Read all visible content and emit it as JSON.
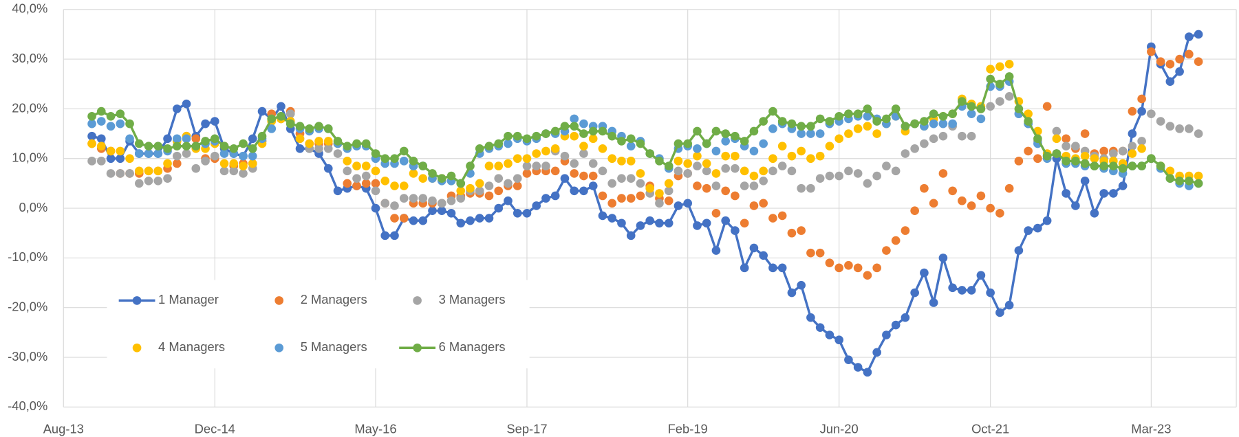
{
  "chart_data": {
    "type": "line",
    "x": [
      "2013-11",
      "2013-12",
      "2014-01",
      "2014-02",
      "2014-03",
      "2014-04",
      "2014-05",
      "2014-06",
      "2014-07",
      "2014-08",
      "2014-09",
      "2014-10",
      "2014-11",
      "2014-12",
      "2015-01",
      "2015-02",
      "2015-03",
      "2015-04",
      "2015-05",
      "2015-06",
      "2015-07",
      "2015-08",
      "2015-09",
      "2015-10",
      "2015-11",
      "2015-12",
      "2016-01",
      "2016-02",
      "2016-03",
      "2016-04",
      "2016-05",
      "2016-06",
      "2016-07",
      "2016-08",
      "2016-09",
      "2016-10",
      "2016-11",
      "2016-12",
      "2017-01",
      "2017-02",
      "2017-03",
      "2017-04",
      "2017-05",
      "2017-06",
      "2017-07",
      "2017-08",
      "2017-09",
      "2017-10",
      "2017-11",
      "2017-12",
      "2018-01",
      "2018-02",
      "2018-03",
      "2018-04",
      "2018-05",
      "2018-06",
      "2018-07",
      "2018-08",
      "2018-09",
      "2018-10",
      "2018-11",
      "2018-12",
      "2019-01",
      "2019-02",
      "2019-03",
      "2019-04",
      "2019-05",
      "2019-06",
      "2019-07",
      "2019-08",
      "2019-09",
      "2019-10",
      "2019-11",
      "2019-12",
      "2020-01",
      "2020-02",
      "2020-03",
      "2020-04",
      "2020-05",
      "2020-06",
      "2020-07",
      "2020-08",
      "2020-09",
      "2020-10",
      "2020-11",
      "2020-12",
      "2021-01",
      "2021-02",
      "2021-03",
      "2021-04",
      "2021-05",
      "2021-06",
      "2021-07",
      "2021-08",
      "2021-09",
      "2021-10",
      "2021-11",
      "2021-12",
      "2022-01",
      "2022-02",
      "2022-03",
      "2022-04",
      "2022-05",
      "2022-06",
      "2022-07",
      "2022-08",
      "2022-09",
      "2022-10",
      "2022-11",
      "2022-12",
      "2023-01",
      "2023-02",
      "2023-03",
      "2023-04",
      "2023-05",
      "2023-06",
      "2023-07",
      "2023-08"
    ],
    "xlim": [
      "2013-08",
      "2023-12"
    ],
    "xticks": [
      {
        "value": "2013-08",
        "label": "Aug-13"
      },
      {
        "value": "2014-12",
        "label": "Dec-14"
      },
      {
        "value": "2016-05",
        "label": "May-16"
      },
      {
        "value": "2017-09",
        "label": "Sep-17"
      },
      {
        "value": "2019-02",
        "label": "Feb-19"
      },
      {
        "value": "2020-06",
        "label": "Jun-20"
      },
      {
        "value": "2021-10",
        "label": "Oct-21"
      },
      {
        "value": "2023-03",
        "label": "Mar-23"
      }
    ],
    "ylim": [
      -40,
      40
    ],
    "yticks": [
      {
        "value": -40,
        "label": "-40,0%"
      },
      {
        "value": -30,
        "label": "-30,0%"
      },
      {
        "value": -20,
        "label": "-20,0%"
      },
      {
        "value": -10,
        "label": "-10,0%"
      },
      {
        "value": 0,
        "label": "0,0%"
      },
      {
        "value": 10,
        "label": "10,0%"
      },
      {
        "value": 20,
        "label": "20,0%"
      },
      {
        "value": 30,
        "label": "30,0%"
      },
      {
        "value": 40,
        "label": "40,0%"
      }
    ],
    "grid": true,
    "legend": "lower left",
    "series": [
      {
        "name": "1 Manager",
        "color": "#4472c4",
        "line": true,
        "values": [
          14.5,
          14,
          10,
          10,
          13.5,
          11,
          11,
          11,
          14,
          20,
          21,
          14.5,
          17,
          17.5,
          12,
          11,
          10.5,
          14,
          19.5,
          18,
          20.5,
          16,
          12,
          12,
          11,
          8,
          3.5,
          4,
          4.5,
          4,
          0,
          -5.5,
          -5.5,
          -2,
          -2.5,
          -2.5,
          -0.5,
          -0.5,
          -1,
          -3,
          -2.5,
          -2,
          -2,
          0,
          1.5,
          -1,
          -1,
          0.5,
          2,
          2.5,
          6,
          3.5,
          3.5,
          4.5,
          -1.5,
          -2,
          -3,
          -5.5,
          -3.5,
          -2.5,
          -3,
          -3,
          0.5,
          1,
          -3.5,
          -3,
          -8.5,
          -2.5,
          -4.5,
          -12,
          -8,
          -9.5,
          -12,
          -12,
          -17,
          -15.5,
          -22,
          -24,
          -25.5,
          -26.5,
          -30.5,
          -32,
          -33,
          -29,
          -25.5,
          -23.5,
          -22,
          -17,
          -13,
          -19,
          -10,
          -16,
          -16.5,
          -16.5,
          -13.5,
          -17,
          -21,
          -19.5,
          -8.5,
          -4.5,
          -4,
          -2.5,
          10,
          3,
          0.5,
          5.5,
          -1,
          3,
          3,
          4.5,
          15,
          19.5,
          32.5,
          29,
          25.5,
          27.5,
          34.5,
          35
        ]
      },
      {
        "name": "2 Managers",
        "color": "#ed7d31",
        "line": false,
        "values": [
          13,
          12,
          11.5,
          7,
          7,
          7,
          7.5,
          7.5,
          8,
          9,
          14.5,
          14,
          10,
          10,
          12.5,
          8.5,
          9,
          9,
          13.5,
          19,
          18,
          19.5,
          15,
          13,
          13,
          13,
          13,
          5,
          4.5,
          5,
          5,
          1,
          -2,
          -2,
          1,
          1,
          1,
          1,
          2.5,
          2.5,
          3,
          3,
          2.5,
          3.5,
          4.5,
          4.5,
          7,
          7.5,
          7.5,
          7.5,
          9.5,
          7,
          6.5,
          6.5,
          2.5,
          1,
          2,
          2,
          2.5,
          4.5,
          2,
          1.5,
          6.5,
          7,
          4.5,
          4,
          -1,
          3.5,
          2.5,
          -3,
          0.5,
          1,
          -2,
          -1.5,
          -5,
          -4.5,
          -9,
          -9,
          -11,
          -12,
          -11.5,
          -12,
          -13.5,
          -12,
          -8.5,
          -6.5,
          -4.5,
          -0.5,
          4,
          1,
          7,
          3.5,
          1.5,
          0.5,
          2.5,
          0,
          -1,
          4,
          9.5,
          11.5,
          10,
          20.5,
          11,
          14,
          12,
          15,
          11,
          11.5,
          11.5,
          11.5,
          19.5,
          22,
          31.5,
          29.5,
          29,
          30,
          31,
          29.5
        ]
      },
      {
        "name": "3 Managers",
        "color": "#a5a5a5",
        "line": false,
        "values": [
          9.5,
          9.5,
          7,
          7,
          7,
          5,
          5.5,
          5.5,
          6,
          10.5,
          11,
          8,
          9.5,
          10.5,
          7.5,
          7.5,
          7,
          8,
          13.5,
          18,
          18,
          19,
          14,
          12,
          12,
          12,
          11,
          7.5,
          6,
          6.5,
          3.5,
          1,
          0.5,
          2,
          2,
          2,
          1.5,
          1,
          1.5,
          2,
          3.5,
          3.5,
          4.5,
          6,
          5,
          6,
          8.5,
          8.5,
          8.5,
          11.5,
          10.5,
          9,
          11,
          9,
          7.5,
          5,
          6,
          6,
          5,
          3,
          1,
          3.5,
          7.5,
          7,
          8.5,
          7.5,
          4.5,
          8,
          8,
          4.5,
          4.5,
          5.5,
          7.5,
          8.5,
          7.5,
          4,
          4,
          6,
          6.5,
          6.5,
          7.5,
          7,
          5,
          6.5,
          8.5,
          7.5,
          11,
          12,
          13,
          14,
          14.5,
          16.5,
          14.5,
          14.5,
          20,
          20.5,
          21.5,
          22.5,
          19,
          17,
          13.5,
          10.5,
          15.5,
          12.5,
          12.5,
          11.5,
          10.5,
          10,
          11,
          11.5,
          12.5,
          13.5,
          19,
          17.5,
          16.5,
          16,
          16,
          15
        ]
      },
      {
        "name": "4 Managers",
        "color": "#ffc000",
        "line": false,
        "values": [
          13,
          12.5,
          11.5,
          11.5,
          10,
          7.5,
          7.5,
          7.5,
          9,
          13.5,
          14.5,
          12,
          12,
          13,
          9,
          9,
          8.5,
          9,
          13,
          17.5,
          18,
          17.5,
          14,
          13,
          13.5,
          13.5,
          13,
          9.5,
          8.5,
          8.5,
          7.5,
          5.5,
          4.5,
          4.5,
          7,
          6,
          6,
          6,
          5.5,
          3.5,
          4,
          5,
          8.5,
          8.5,
          9,
          10,
          10,
          11,
          11.5,
          12,
          14.5,
          14.5,
          12.5,
          14,
          12,
          10,
          9.5,
          9.5,
          7,
          4,
          3,
          5,
          9.5,
          9,
          10.5,
          9,
          7,
          10.5,
          10.5,
          7.5,
          6.5,
          7.5,
          10,
          12.5,
          10.5,
          11.5,
          10,
          10.5,
          12.5,
          14,
          15,
          16,
          16.5,
          15,
          17,
          18.5,
          15.5,
          17,
          16.5,
          18,
          18.5,
          19,
          22,
          21,
          20.5,
          28,
          28.5,
          29,
          21.5,
          19,
          15.5,
          11,
          14,
          10.5,
          10,
          10.5,
          10,
          9.5,
          9.5,
          9,
          11,
          12,
          10,
          8.5,
          7.5,
          6.5,
          6.5,
          6.5
        ]
      },
      {
        "name": "5 Managers",
        "color": "#5b9bd5",
        "line": false,
        "values": [
          17,
          17.5,
          16.5,
          17,
          14,
          11,
          11,
          11,
          11.5,
          14,
          14,
          12.5,
          13,
          13.5,
          11,
          11,
          10.5,
          10.5,
          14,
          16,
          18.5,
          17,
          16,
          15.5,
          16,
          16,
          13,
          12,
          12.5,
          12.5,
          10,
          9,
          9,
          9.5,
          8.5,
          8.5,
          6,
          5.5,
          5.5,
          5,
          7,
          11,
          12,
          12.5,
          13,
          14,
          13.5,
          14,
          15,
          15,
          15.5,
          18,
          17,
          16.5,
          16.5,
          15.5,
          14.5,
          12.5,
          13.5,
          11,
          10,
          8,
          12,
          12.5,
          12,
          13,
          11.5,
          13.5,
          14,
          12.5,
          11.5,
          13,
          16,
          17,
          16,
          15,
          15,
          15,
          17,
          17.5,
          18,
          18.5,
          18.5,
          18,
          17,
          18.5,
          16.5,
          17,
          16.5,
          17,
          17,
          17,
          20.5,
          19,
          18,
          24.5,
          24.5,
          25.5,
          19,
          17,
          13,
          10,
          11,
          9,
          9,
          8.5,
          8.5,
          8,
          7.5,
          7,
          8.5,
          8.5,
          10,
          8,
          6,
          5,
          4.5,
          5
        ]
      },
      {
        "name": "6 Managers",
        "color": "#70ad47",
        "line": true,
        "values": [
          18.5,
          19.5,
          18.5,
          19,
          17,
          13,
          12.5,
          12.5,
          12,
          12.5,
          12.5,
          12.5,
          13.5,
          14,
          12.5,
          12,
          13,
          12,
          14.5,
          18,
          18.5,
          17,
          16.5,
          16,
          16.5,
          16,
          13.5,
          12.5,
          13,
          13,
          11,
          10,
          10,
          11.5,
          9.5,
          8.5,
          7,
          6,
          6.5,
          5,
          8.5,
          12,
          12.5,
          13,
          14.5,
          14.5,
          14,
          14.5,
          15,
          15.5,
          16.5,
          16.5,
          15,
          15.5,
          15.5,
          14.5,
          13.5,
          14,
          13,
          11,
          9.5,
          8.5,
          13,
          13,
          15.5,
          13,
          15.5,
          15,
          14.5,
          13.5,
          15.5,
          17.5,
          19.5,
          17.5,
          17,
          16.5,
          16.5,
          18,
          17.5,
          18.5,
          19,
          19,
          20,
          17.5,
          18,
          20,
          16.5,
          17,
          17.5,
          19,
          18.5,
          19,
          21.5,
          20.5,
          20,
          26,
          25,
          26.5,
          20,
          17.5,
          14,
          10.5,
          11,
          9.5,
          9.5,
          9,
          8.5,
          8.5,
          8.5,
          8,
          8.5,
          8.5,
          10,
          8.5,
          6,
          5.5,
          5.5,
          5
        ]
      }
    ]
  }
}
